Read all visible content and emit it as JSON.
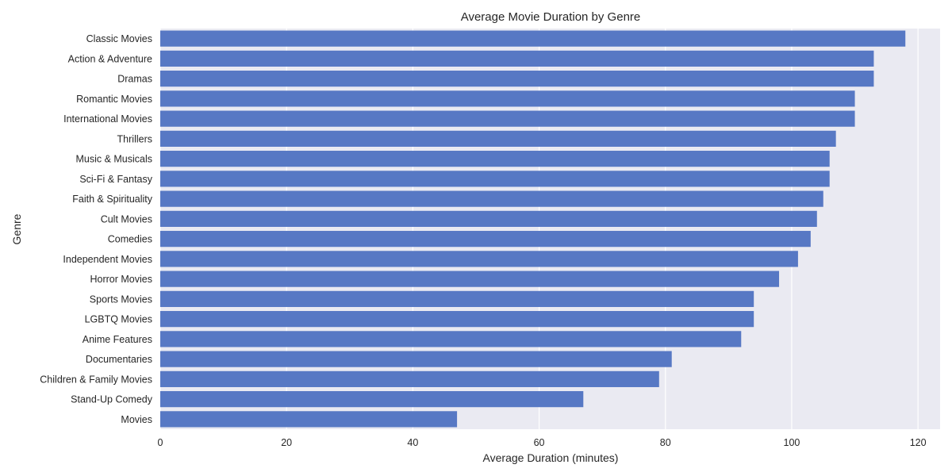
{
  "chart_data": {
    "type": "bar",
    "orientation": "horizontal",
    "title": "Average Movie Duration by Genre",
    "xlabel": "Average Duration (minutes)",
    "ylabel": "Genre",
    "xlim": [
      0,
      123.5
    ],
    "xticks": [
      0,
      20,
      40,
      60,
      80,
      100,
      120
    ],
    "grid": true,
    "bar_color": "#5778c4",
    "background_color": "#eaeaf2",
    "categories": [
      "Classic Movies",
      "Action & Adventure",
      "Dramas",
      "Romantic Movies",
      "International Movies",
      "Thrillers",
      "Music & Musicals",
      "Sci-Fi & Fantasy",
      "Faith & Spirituality",
      "Cult Movies",
      "Comedies",
      "Independent Movies",
      "Horror Movies",
      "Sports Movies",
      "LGBTQ Movies",
      "Anime Features",
      "Documentaries",
      "Children & Family Movies",
      "Stand-Up Comedy",
      "Movies"
    ],
    "values": [
      118,
      113,
      113,
      110,
      110,
      107,
      106,
      106,
      105,
      104,
      103,
      101,
      98,
      94,
      94,
      92,
      81,
      79,
      67,
      47
    ]
  }
}
